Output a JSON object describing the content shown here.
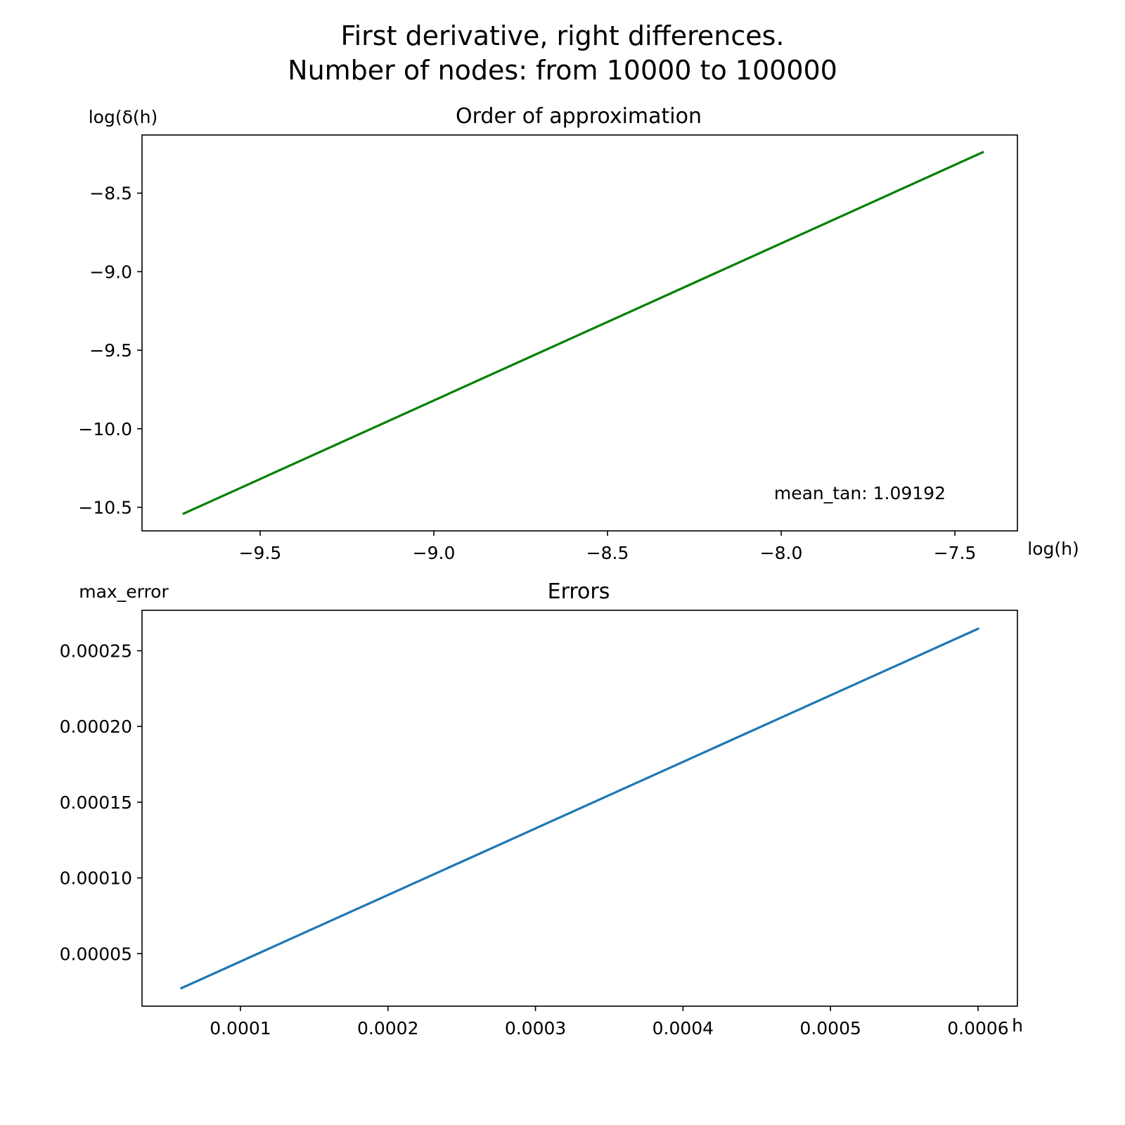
{
  "figure": {
    "suptitle_line1": "First derivative, right differences.",
    "suptitle_line2": "Number of nodes: from 10000 to 100000"
  },
  "chart_data": [
    {
      "type": "line",
      "title": "Order of approximation",
      "xlabel": "log(h)",
      "ylabel": "log(δ(h)",
      "xlim": [
        -9.84,
        -7.32
      ],
      "ylim": [
        -10.65,
        -8.13
      ],
      "xticks": [
        -9.5,
        -9.0,
        -8.5,
        -8.0,
        -7.5
      ],
      "xtick_labels": [
        "−9.5",
        "−9.0",
        "−8.5",
        "−8.0",
        "−7.5"
      ],
      "yticks": [
        -8.5,
        -9.0,
        -9.5,
        -10.0,
        -10.5
      ],
      "ytick_labels": [
        "−8.5",
        "−9.0",
        "−9.5",
        "−10.0",
        "−10.5"
      ],
      "grid": false,
      "series": [
        {
          "color": "#008000",
          "x": [
            -9.72,
            -7.42
          ],
          "y": [
            -10.54,
            -8.24
          ]
        }
      ],
      "annotation": "mean_tan: 1.09192"
    },
    {
      "type": "line",
      "title": "Errors",
      "xlabel": "h",
      "ylabel": "max_error",
      "xlim": [
        3.33e-05,
        0.0006267
      ],
      "ylim": [
        1.53e-05,
        0.0002767
      ],
      "xticks": [
        0.0001,
        0.0002,
        0.0003,
        0.0004,
        0.0005,
        0.0006
      ],
      "xtick_labels": [
        "0.0001",
        "0.0002",
        "0.0003",
        "0.0004",
        "0.0005",
        "0.0006"
      ],
      "yticks": [
        0.00025,
        0.0002,
        0.00015,
        0.0001,
        5e-05
      ],
      "ytick_labels": [
        "0.00025",
        "0.00020",
        "0.00015",
        "0.00010",
        "0.00005"
      ],
      "grid": false,
      "series": [
        {
          "color": "#1f77b4",
          "x": [
            6e-05,
            0.0006
          ],
          "y": [
            2.72e-05,
            0.0002645
          ]
        }
      ]
    }
  ]
}
